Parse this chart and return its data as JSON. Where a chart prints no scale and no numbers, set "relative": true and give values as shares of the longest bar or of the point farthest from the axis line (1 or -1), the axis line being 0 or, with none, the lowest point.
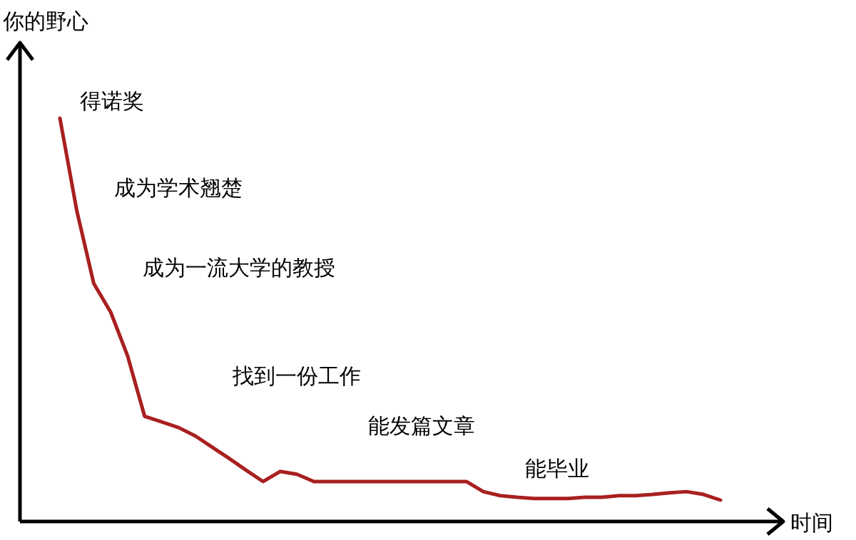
{
  "chart_data": {
    "type": "line",
    "relative": true,
    "xlabel": "时间",
    "ylabel": "你的野心",
    "categories": [
      null,
      null,
      null,
      null,
      null,
      null,
      null,
      null,
      null,
      null,
      null,
      null,
      null,
      null,
      null,
      null,
      null,
      null,
      null,
      null,
      null,
      null,
      null,
      null,
      null,
      null,
      null,
      null,
      null,
      null,
      null,
      null,
      null,
      null,
      null,
      null,
      null,
      null,
      null,
      null
    ],
    "series": [
      {
        "color": "#a8201f",
        "values": [
          1.0,
          0.77,
          0.59,
          0.519,
          0.41,
          0.261,
          0.247,
          0.233,
          0.212,
          0.184,
          0.156,
          0.127,
          0.099,
          0.124,
          0.117,
          0.099,
          0.099,
          0.099,
          0.099,
          0.099,
          0.099,
          0.099,
          0.099,
          0.099,
          0.099,
          0.074,
          0.064,
          0.06,
          0.057,
          0.057,
          0.057,
          0.06,
          0.06,
          0.064,
          0.064,
          0.067,
          0.071,
          0.074,
          0.067,
          0.053
        ]
      }
    ],
    "annotations": [
      "得诺奖",
      "成为学术翘楚",
      "成为一流大学的教授",
      "找到一份工作",
      "能发篇文章",
      "能毕业"
    ]
  }
}
